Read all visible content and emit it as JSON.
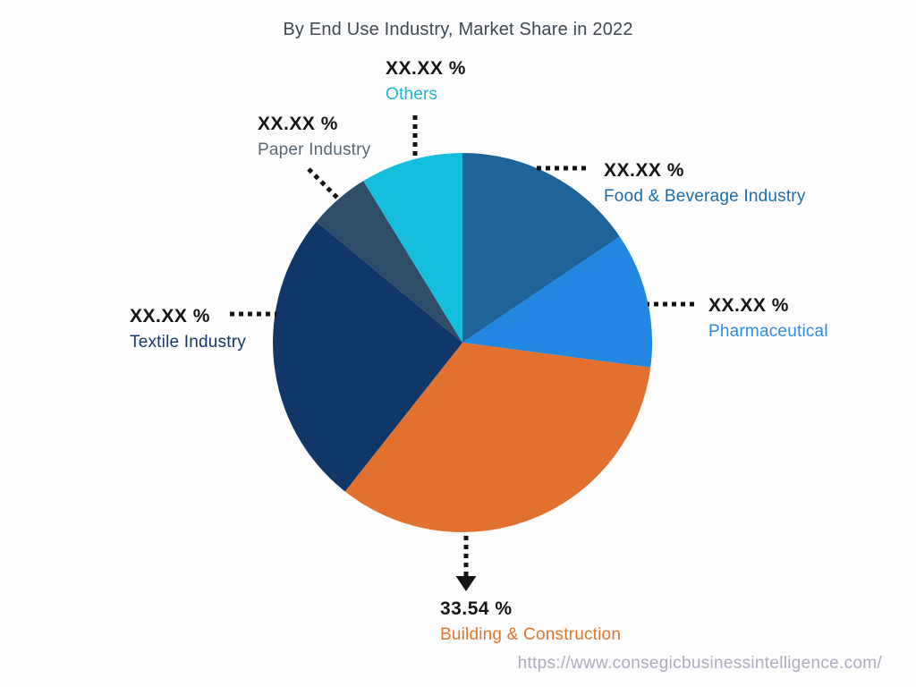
{
  "chart_data": {
    "type": "pie",
    "title": "By End Use Industry, Market Share in 2022",
    "legend_position": "callout-labels",
    "start_angle_deg": 0,
    "direction": "clockwise",
    "center": [
      517,
      383
    ],
    "radius": 212,
    "slices": [
      {
        "id": "food-beverage-industry",
        "label": "Food & Beverage Industry",
        "value_label": "XX.XX %",
        "value_pct": 15.56,
        "color": "#1f639b",
        "label_color": "#1d6ca8"
      },
      {
        "id": "pharmaceutical",
        "label": "Pharmaceutical",
        "value_label": "XX.XX %",
        "value_pct": 11.53,
        "color": "#2287e2",
        "label_color": "#2f8be2"
      },
      {
        "id": "building-construction",
        "label": "Building & Construction",
        "value_label": "33.54 %",
        "value_pct": 33.54,
        "color": "#e2702e",
        "label_color": "#df762f"
      },
      {
        "id": "textile-industry",
        "label": "Textile Industry",
        "value_label": "XX.XX %",
        "value_pct": 25.39,
        "color": "#103768",
        "label_color": "#14386b"
      },
      {
        "id": "paper-industry",
        "label": "Paper Industry",
        "value_label": "XX.XX %",
        "value_pct": 5.22,
        "color": "#2e4d68",
        "label_color": "#5a6875"
      },
      {
        "id": "others",
        "label": "Others",
        "value_label": "XX.XX %",
        "value_pct": 8.76,
        "color": "#14bedc",
        "label_color": "#1cb6d6"
      }
    ]
  },
  "watermark": {
    "url_text": "https://www.consegicbusinessintelligence.com/"
  }
}
